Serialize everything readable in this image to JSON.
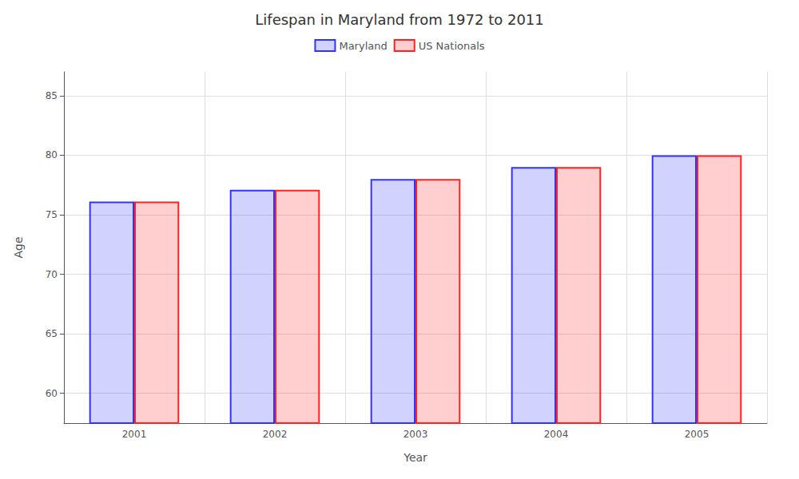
{
  "chart_data": {
    "type": "bar",
    "title": "Lifespan in Maryland from 1972 to 2011",
    "xlabel": "Year",
    "ylabel": "Age",
    "categories": [
      "2001",
      "2002",
      "2003",
      "2004",
      "2005"
    ],
    "series": [
      {
        "name": "Maryland",
        "color": "#3333ff",
        "values": [
          76.1,
          77.1,
          78.0,
          79.0,
          80.0
        ]
      },
      {
        "name": "US Nationals",
        "color": "#ff2222",
        "values": [
          76.1,
          77.1,
          78.0,
          79.0,
          80.0
        ]
      }
    ],
    "ylim": [
      57.5,
      87
    ],
    "yticks": [
      60,
      65,
      70,
      75,
      80,
      85
    ],
    "grid": true,
    "legend": "top"
  }
}
